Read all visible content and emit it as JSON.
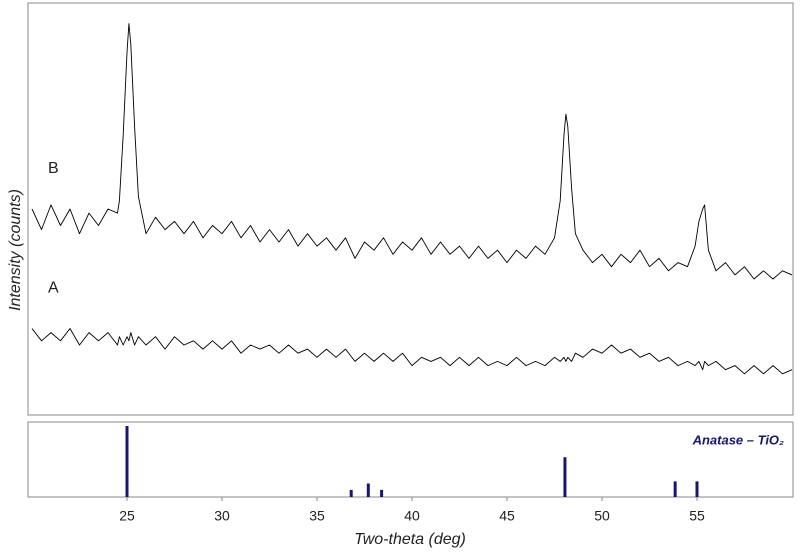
{
  "chart_data": [
    {
      "type": "line",
      "y_label": "Intensity (counts)",
      "xlim": [
        20,
        60
      ],
      "ylim": [
        0,
        100
      ],
      "x": [
        20,
        20.5,
        21,
        21.5,
        22,
        22.5,
        23,
        23.5,
        24,
        24.5,
        24.6,
        24.8,
        25,
        25.1,
        25.2,
        25.4,
        25.6,
        26,
        26.5,
        27,
        27.5,
        28,
        28.5,
        29,
        29.5,
        30,
        30.5,
        31,
        31.5,
        32,
        32.5,
        33,
        33.5,
        34,
        34.5,
        35,
        35.5,
        36,
        36.5,
        37,
        37.5,
        38,
        38.5,
        39,
        39.5,
        40,
        40.5,
        41,
        41.5,
        42,
        42.5,
        43,
        43.5,
        44,
        44.5,
        45,
        45.5,
        46,
        46.5,
        47,
        47.5,
        47.8,
        48,
        48.1,
        48.2,
        48.4,
        48.6,
        49,
        49.5,
        50,
        50.5,
        51,
        51.5,
        52,
        52.5,
        53,
        53.5,
        54,
        54.5,
        54.9,
        55.1,
        55.3,
        55.4,
        55.6,
        56,
        56.5,
        57,
        57.5,
        58,
        58.5,
        59,
        59.5,
        60
      ],
      "series": [
        {
          "name": "B",
          "color": "#000000",
          "values": [
            50,
            45,
            51,
            46,
            50,
            44,
            49,
            46,
            50,
            49,
            52,
            68,
            88,
            95,
            90,
            70,
            53,
            44,
            48,
            45,
            47,
            44,
            47,
            43,
            46,
            44,
            47,
            43,
            46,
            42,
            45,
            42,
            45,
            41,
            44,
            41,
            43,
            40,
            43,
            38,
            42,
            40,
            43,
            39,
            42,
            40,
            43,
            39,
            42,
            39,
            41,
            38,
            41,
            38,
            40,
            37,
            40,
            38,
            41,
            39,
            43,
            52,
            68,
            73,
            70,
            55,
            44,
            40,
            37,
            39,
            36,
            39,
            37,
            40,
            36,
            38,
            35,
            37,
            36,
            41,
            47,
            50,
            51,
            40,
            35,
            37,
            34,
            36,
            33,
            35,
            33,
            35,
            34
          ]
        },
        {
          "name": "A",
          "color": "#000000",
          "values": [
            21,
            18,
            20,
            18,
            21,
            17,
            20,
            18,
            20,
            17,
            19,
            17,
            19,
            18,
            20,
            17,
            19,
            17,
            19,
            16,
            19,
            17,
            18,
            16,
            18,
            16,
            18,
            15,
            17,
            16,
            17,
            15,
            17,
            15,
            16,
            14,
            16,
            14,
            16,
            13,
            15,
            13,
            15,
            13,
            15,
            12,
            14,
            13,
            14,
            12,
            14,
            12,
            14,
            12,
            13,
            12,
            14,
            12,
            13,
            12,
            14,
            13,
            14,
            13,
            14,
            13,
            15,
            14,
            16,
            15,
            17,
            15,
            16,
            14,
            15,
            13,
            14,
            12,
            13,
            12,
            13,
            11,
            13,
            12,
            13,
            11,
            12,
            10,
            12,
            10,
            12,
            10,
            11
          ]
        }
      ]
    },
    {
      "type": "stick",
      "label": "Anatase – TiO₂",
      "x_label": "Two-theta (deg)",
      "xlim": [
        20,
        60
      ],
      "ylim": [
        0,
        100
      ],
      "xticks": [
        25,
        30,
        35,
        40,
        45,
        50,
        55
      ],
      "color": "#15157e",
      "x": [
        25.0,
        36.8,
        37.7,
        38.4,
        48.05,
        53.85,
        55.0
      ],
      "values": [
        100,
        10,
        19,
        10,
        56,
        22,
        22
      ]
    }
  ]
}
